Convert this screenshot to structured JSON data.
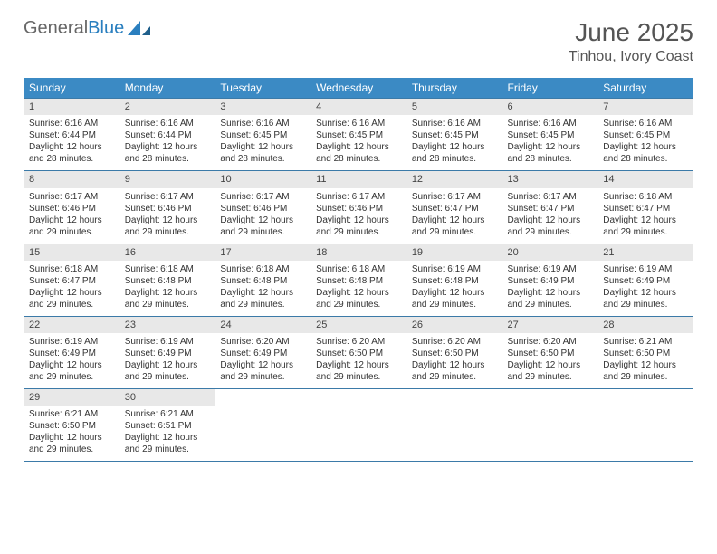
{
  "brand": {
    "part1": "General",
    "part2": "Blue"
  },
  "title": "June 2025",
  "location": "Tinhou, Ivory Coast",
  "colors": {
    "header_bg": "#3b8ac4",
    "header_text": "#ffffff",
    "daynum_bg": "#e8e8e8",
    "row_border": "#3b7aa8",
    "brand_gray": "#666666",
    "brand_blue": "#2a7fbf",
    "text": "#333333"
  },
  "days_of_week": [
    "Sunday",
    "Monday",
    "Tuesday",
    "Wednesday",
    "Thursday",
    "Friday",
    "Saturday"
  ],
  "weeks": [
    [
      {
        "n": "1",
        "sr": "6:16 AM",
        "ss": "6:44 PM",
        "dl": "12 hours and 28 minutes."
      },
      {
        "n": "2",
        "sr": "6:16 AM",
        "ss": "6:44 PM",
        "dl": "12 hours and 28 minutes."
      },
      {
        "n": "3",
        "sr": "6:16 AM",
        "ss": "6:45 PM",
        "dl": "12 hours and 28 minutes."
      },
      {
        "n": "4",
        "sr": "6:16 AM",
        "ss": "6:45 PM",
        "dl": "12 hours and 28 minutes."
      },
      {
        "n": "5",
        "sr": "6:16 AM",
        "ss": "6:45 PM",
        "dl": "12 hours and 28 minutes."
      },
      {
        "n": "6",
        "sr": "6:16 AM",
        "ss": "6:45 PM",
        "dl": "12 hours and 28 minutes."
      },
      {
        "n": "7",
        "sr": "6:16 AM",
        "ss": "6:45 PM",
        "dl": "12 hours and 28 minutes."
      }
    ],
    [
      {
        "n": "8",
        "sr": "6:17 AM",
        "ss": "6:46 PM",
        "dl": "12 hours and 29 minutes."
      },
      {
        "n": "9",
        "sr": "6:17 AM",
        "ss": "6:46 PM",
        "dl": "12 hours and 29 minutes."
      },
      {
        "n": "10",
        "sr": "6:17 AM",
        "ss": "6:46 PM",
        "dl": "12 hours and 29 minutes."
      },
      {
        "n": "11",
        "sr": "6:17 AM",
        "ss": "6:46 PM",
        "dl": "12 hours and 29 minutes."
      },
      {
        "n": "12",
        "sr": "6:17 AM",
        "ss": "6:47 PM",
        "dl": "12 hours and 29 minutes."
      },
      {
        "n": "13",
        "sr": "6:17 AM",
        "ss": "6:47 PM",
        "dl": "12 hours and 29 minutes."
      },
      {
        "n": "14",
        "sr": "6:18 AM",
        "ss": "6:47 PM",
        "dl": "12 hours and 29 minutes."
      }
    ],
    [
      {
        "n": "15",
        "sr": "6:18 AM",
        "ss": "6:47 PM",
        "dl": "12 hours and 29 minutes."
      },
      {
        "n": "16",
        "sr": "6:18 AM",
        "ss": "6:48 PM",
        "dl": "12 hours and 29 minutes."
      },
      {
        "n": "17",
        "sr": "6:18 AM",
        "ss": "6:48 PM",
        "dl": "12 hours and 29 minutes."
      },
      {
        "n": "18",
        "sr": "6:18 AM",
        "ss": "6:48 PM",
        "dl": "12 hours and 29 minutes."
      },
      {
        "n": "19",
        "sr": "6:19 AM",
        "ss": "6:48 PM",
        "dl": "12 hours and 29 minutes."
      },
      {
        "n": "20",
        "sr": "6:19 AM",
        "ss": "6:49 PM",
        "dl": "12 hours and 29 minutes."
      },
      {
        "n": "21",
        "sr": "6:19 AM",
        "ss": "6:49 PM",
        "dl": "12 hours and 29 minutes."
      }
    ],
    [
      {
        "n": "22",
        "sr": "6:19 AM",
        "ss": "6:49 PM",
        "dl": "12 hours and 29 minutes."
      },
      {
        "n": "23",
        "sr": "6:19 AM",
        "ss": "6:49 PM",
        "dl": "12 hours and 29 minutes."
      },
      {
        "n": "24",
        "sr": "6:20 AM",
        "ss": "6:49 PM",
        "dl": "12 hours and 29 minutes."
      },
      {
        "n": "25",
        "sr": "6:20 AM",
        "ss": "6:50 PM",
        "dl": "12 hours and 29 minutes."
      },
      {
        "n": "26",
        "sr": "6:20 AM",
        "ss": "6:50 PM",
        "dl": "12 hours and 29 minutes."
      },
      {
        "n": "27",
        "sr": "6:20 AM",
        "ss": "6:50 PM",
        "dl": "12 hours and 29 minutes."
      },
      {
        "n": "28",
        "sr": "6:21 AM",
        "ss": "6:50 PM",
        "dl": "12 hours and 29 minutes."
      }
    ],
    [
      {
        "n": "29",
        "sr": "6:21 AM",
        "ss": "6:50 PM",
        "dl": "12 hours and 29 minutes."
      },
      {
        "n": "30",
        "sr": "6:21 AM",
        "ss": "6:51 PM",
        "dl": "12 hours and 29 minutes."
      },
      null,
      null,
      null,
      null,
      null
    ]
  ],
  "labels": {
    "sunrise": "Sunrise:",
    "sunset": "Sunset:",
    "daylight": "Daylight:"
  }
}
